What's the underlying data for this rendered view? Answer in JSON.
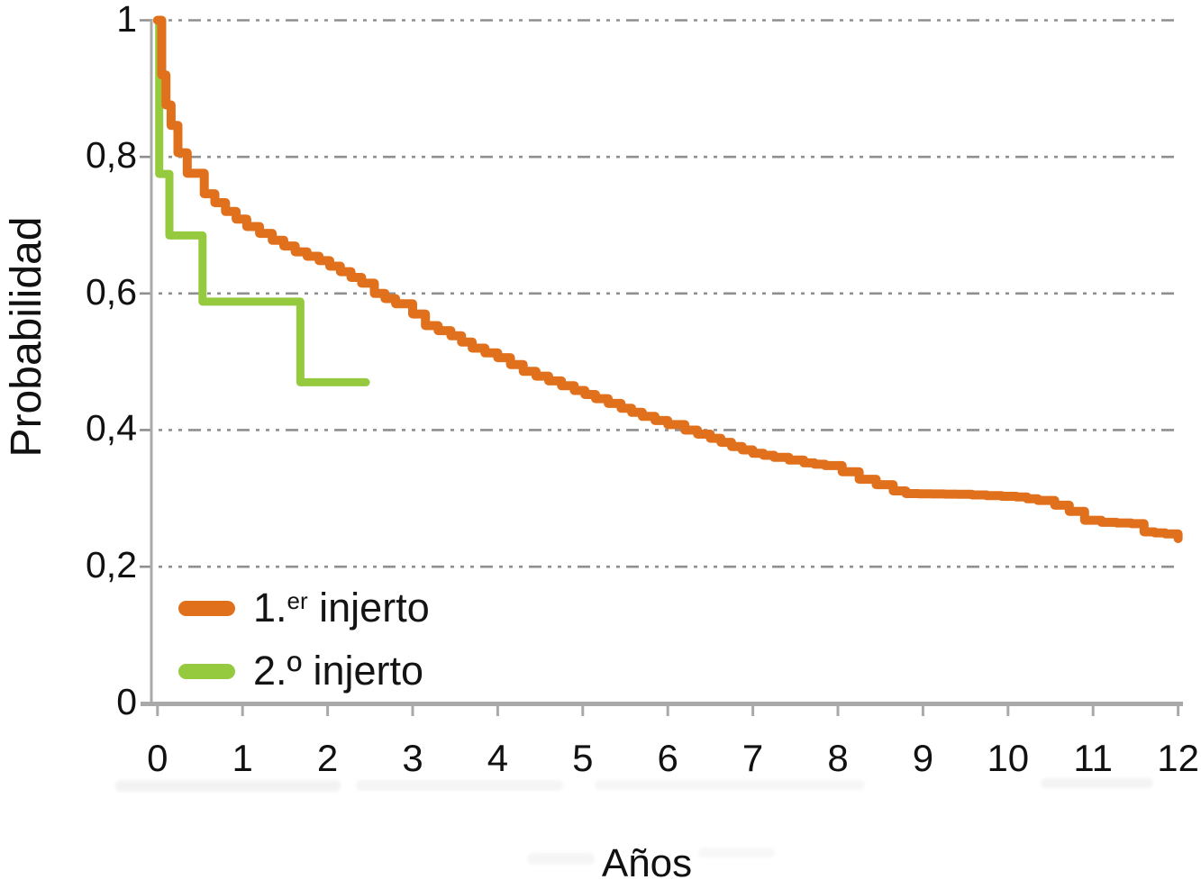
{
  "figure": {
    "x_axis_title": "Años",
    "y_axis_title": "Probabilidad"
  },
  "legend": {
    "items": [
      {
        "pre": "1.",
        "sup": "er",
        "post": " injerto"
      },
      {
        "pre": "2.º",
        "sup": "",
        "post": " injerto"
      }
    ]
  },
  "chart_data": {
    "type": "line",
    "subtype": "kaplan-meier-survival-steps",
    "title": "",
    "xlabel": "Años",
    "ylabel": "Probabilidad",
    "xlim": [
      0,
      12
    ],
    "ylim": [
      0,
      1
    ],
    "grid": "horizontal dash-dot gridlines at 0.2 intervals",
    "legend_position": "inside bottom-left",
    "x_ticks": [
      "0",
      "1",
      "2",
      "3",
      "4",
      "5",
      "6",
      "7",
      "8",
      "9",
      "10",
      "11",
      "12"
    ],
    "y_ticks": [
      {
        "value": 1.0,
        "label": "1"
      },
      {
        "value": 0.8,
        "label": "0,8"
      },
      {
        "value": 0.6,
        "label": "0,6"
      },
      {
        "value": 0.4,
        "label": "0,4"
      },
      {
        "value": 0.2,
        "label": "0,2"
      },
      {
        "value": 0.0,
        "label": "0"
      }
    ],
    "colors": {
      "first_graft": "#e1701d",
      "second_graft": "#95c93e",
      "gridline": "#8f8f8f",
      "axis": "#a9a9a9",
      "text": "#111111"
    },
    "series": [
      {
        "name": "1.er injerto",
        "color": "#e1701d",
        "style": "dense-staircase",
        "points": [
          [
            0,
            1.0
          ],
          [
            0.05,
            0.92
          ],
          [
            0.1,
            0.876
          ],
          [
            0.16,
            0.846
          ],
          [
            0.24,
            0.806
          ],
          [
            0.35,
            0.776
          ],
          [
            0.55,
            0.746
          ],
          [
            0.8,
            0.72
          ],
          [
            1.05,
            0.698
          ],
          [
            1.35,
            0.678
          ],
          [
            1.62,
            0.661
          ],
          [
            1.9,
            0.648
          ],
          [
            2.15,
            0.632
          ],
          [
            2.4,
            0.615
          ],
          [
            2.55,
            0.6
          ],
          [
            2.8,
            0.585
          ],
          [
            3.0,
            0.57
          ],
          [
            3.15,
            0.553
          ],
          [
            3.45,
            0.538
          ],
          [
            3.7,
            0.52
          ],
          [
            4.0,
            0.506
          ],
          [
            4.3,
            0.486
          ],
          [
            4.6,
            0.472
          ],
          [
            4.9,
            0.458
          ],
          [
            5.15,
            0.446
          ],
          [
            5.45,
            0.432
          ],
          [
            5.7,
            0.42
          ],
          [
            6.0,
            0.408
          ],
          [
            6.2,
            0.4
          ],
          [
            6.5,
            0.388
          ],
          [
            6.75,
            0.376
          ],
          [
            7.0,
            0.366
          ],
          [
            7.25,
            0.36
          ],
          [
            7.6,
            0.352
          ],
          [
            7.85,
            0.348
          ],
          [
            8.05,
            0.339
          ],
          [
            8.25,
            0.328
          ],
          [
            8.45,
            0.32
          ],
          [
            8.65,
            0.311
          ],
          [
            8.8,
            0.307
          ],
          [
            9.4,
            0.306
          ],
          [
            9.75,
            0.304
          ],
          [
            10.1,
            0.302
          ],
          [
            10.35,
            0.297
          ],
          [
            10.55,
            0.29
          ],
          [
            10.72,
            0.281
          ],
          [
            10.9,
            0.268
          ],
          [
            11.1,
            0.265
          ],
          [
            11.45,
            0.263
          ],
          [
            11.6,
            0.251
          ],
          [
            11.85,
            0.248
          ],
          [
            12.0,
            0.241
          ]
        ]
      },
      {
        "name": "2.º injerto",
        "color": "#95c93e",
        "style": "exact-steps",
        "points": [
          [
            0,
            1.0
          ],
          [
            0.02,
            1.0
          ],
          [
            0.02,
            0.775
          ],
          [
            0.14,
            0.775
          ],
          [
            0.14,
            0.685
          ],
          [
            0.53,
            0.685
          ],
          [
            0.53,
            0.588
          ],
          [
            1.68,
            0.588
          ],
          [
            1.68,
            0.47
          ],
          [
            2.45,
            0.47
          ]
        ]
      }
    ]
  }
}
